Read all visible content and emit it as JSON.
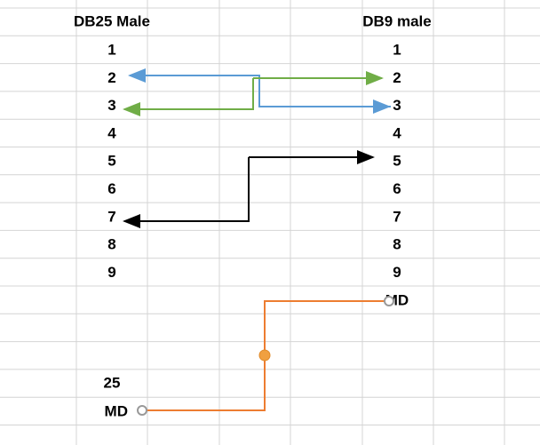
{
  "left": {
    "header": "DB25 Male",
    "pins": [
      "1",
      "2",
      "3",
      "4",
      "5",
      "6",
      "7",
      "8",
      "9"
    ],
    "pin_25": "25",
    "md": "MD"
  },
  "right": {
    "header": "DB9 male",
    "pins": [
      "1",
      "2",
      "3",
      "4",
      "5",
      "6",
      "7",
      "8",
      "9"
    ],
    "md": "MD"
  }
}
